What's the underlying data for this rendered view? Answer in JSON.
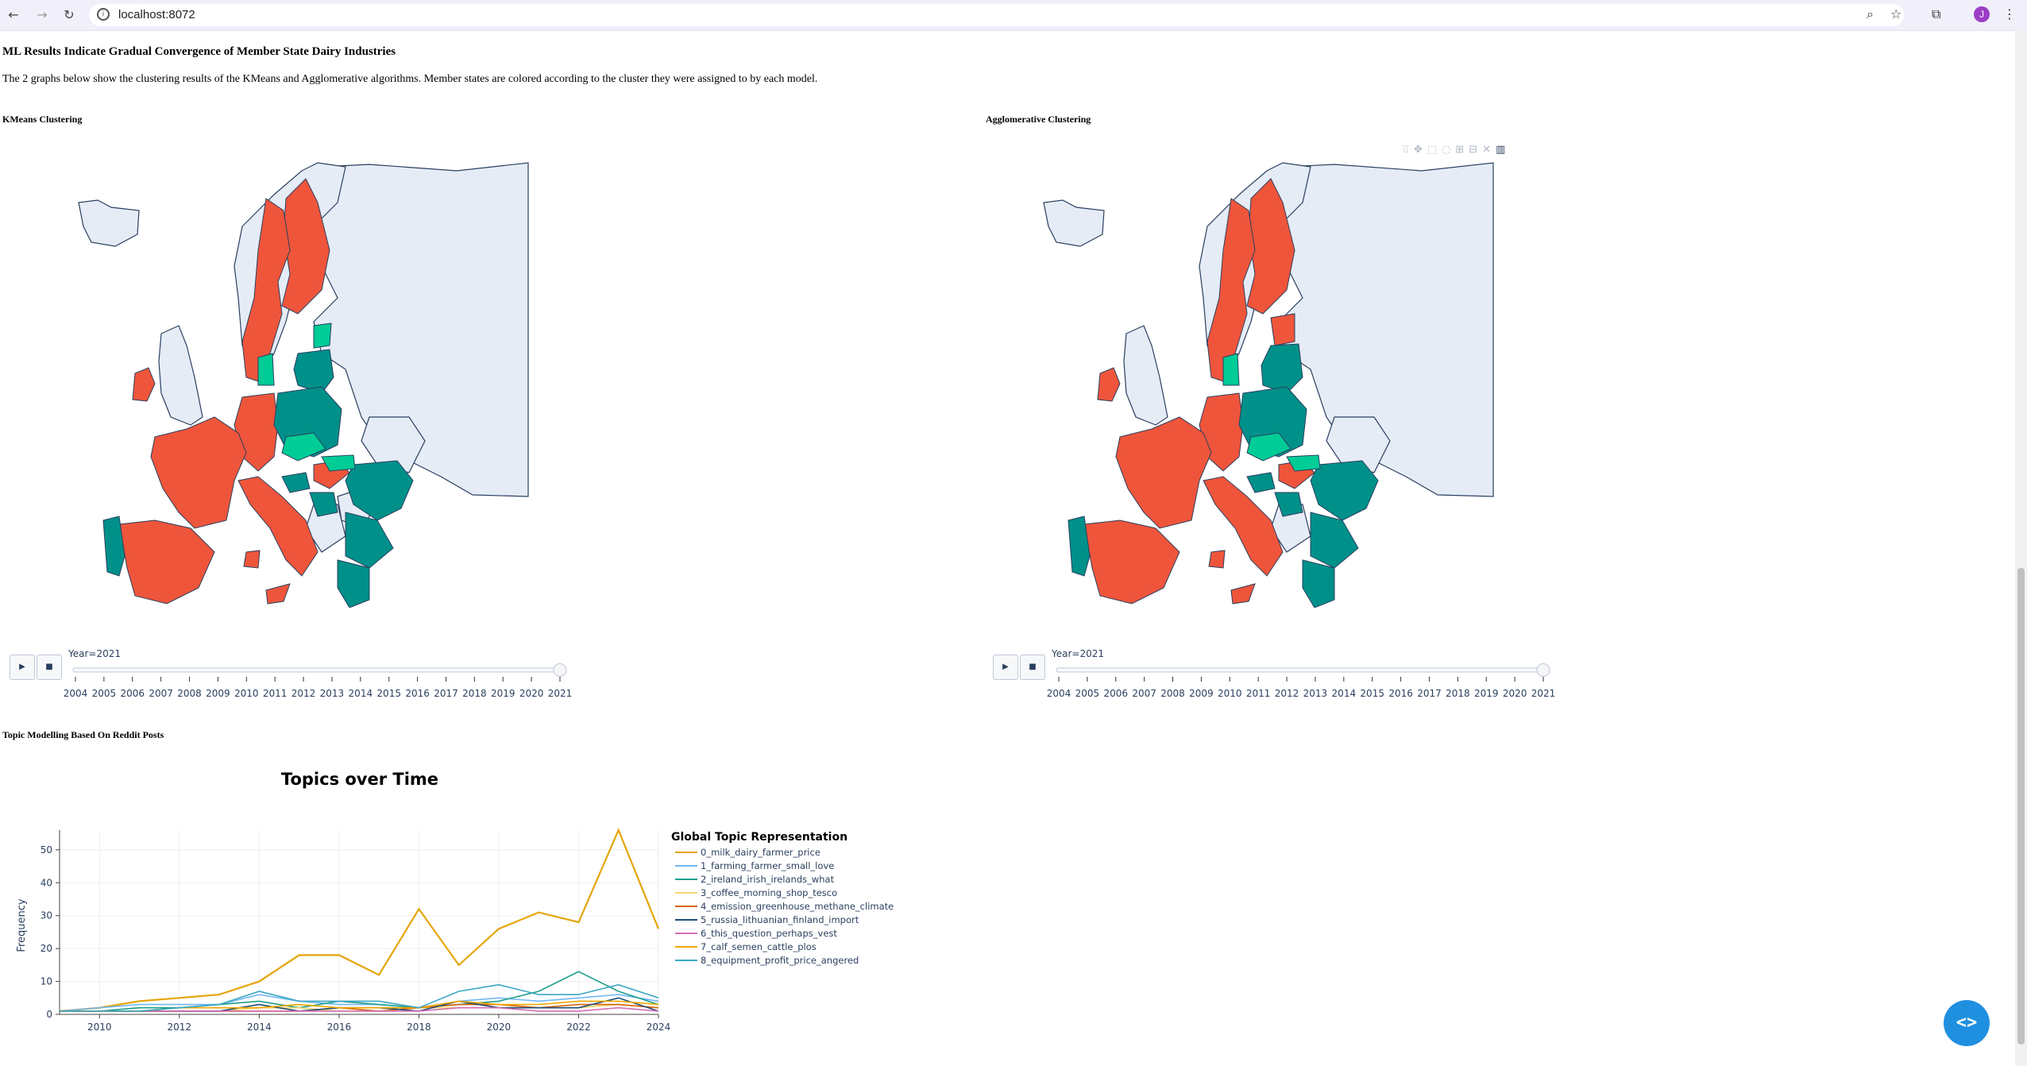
{
  "browser": {
    "url": "localhost:8072",
    "avatar_initial": "J"
  },
  "page": {
    "title": "ML Results Indicate Gradual Convergence of Member State Dairy Industries",
    "description": "The 2 graphs below show the clustering results of the KMeans and Agglomerative algorithms. Member states are colored according to the cluster they were assigned to by each model.",
    "kmeans_heading": "KMeans Clustering",
    "agglo_heading": "Agglomerative Clustering",
    "topic_heading": "Topic Modelling Based On Reddit Posts"
  },
  "slider": {
    "label": "Year=2021",
    "years": [
      "2004",
      "2005",
      "2006",
      "2007",
      "2008",
      "2009",
      "2010",
      "2011",
      "2012",
      "2013",
      "2014",
      "2015",
      "2016",
      "2017",
      "2018",
      "2019",
      "2020",
      "2021"
    ],
    "current": "2021"
  },
  "colors": {
    "cluster_red": "#ef553b",
    "cluster_teal": "#00908a",
    "cluster_green": "#00cc96",
    "land": "#e5ecf6"
  },
  "chart_data": {
    "type": "line",
    "title": "Topics over Time",
    "xlabel": "",
    "ylabel": "Frequency",
    "xlim": [
      2009,
      2024
    ],
    "ylim": [
      0,
      56
    ],
    "x_ticks": [
      "2010",
      "2012",
      "2014",
      "2016",
      "2018",
      "2020",
      "2022",
      "2024"
    ],
    "y_ticks": [
      "0",
      "10",
      "20",
      "30",
      "40",
      "50"
    ],
    "legend_title": "Global Topic Representation",
    "legend_position": "right",
    "x": [
      2009,
      2010,
      2011,
      2012,
      2013,
      2014,
      2015,
      2016,
      2017,
      2018,
      2019,
      2020,
      2021,
      2022,
      2023,
      2024
    ],
    "series": [
      {
        "name": "0_milk_dairy_farmer_price",
        "color": "#e5a50a",
        "values": [
          1,
          2,
          4,
          5,
          6,
          10,
          18,
          18,
          12,
          32,
          15,
          26,
          31,
          28,
          56,
          26
        ]
      },
      {
        "name": "1_farming_farmer_small_love",
        "color": "#72b7f2",
        "values": [
          1,
          2,
          3,
          3,
          3,
          6,
          4,
          3,
          3,
          2,
          4,
          5,
          4,
          5,
          6,
          4
        ]
      },
      {
        "name": "2_ireland_irish_irelands_what",
        "color": "#1c9f8c",
        "values": [
          1,
          1,
          2,
          2,
          3,
          4,
          2,
          4,
          3,
          2,
          3,
          4,
          7,
          13,
          7,
          3
        ]
      },
      {
        "name": "3_coffee_morning_shop_tesco",
        "color": "#f5d76e",
        "values": [
          1,
          1,
          1,
          1,
          1,
          2,
          2,
          1,
          1,
          2,
          2,
          2,
          2,
          2,
          3,
          2
        ]
      },
      {
        "name": "4_emission_greenhouse_methane_climate",
        "color": "#d9640a",
        "values": [
          1,
          1,
          1,
          1,
          1,
          1,
          1,
          2,
          1,
          2,
          3,
          3,
          2,
          3,
          3,
          2
        ]
      },
      {
        "name": "5_russia_lithuanian_finland_import",
        "color": "#1f4e79",
        "values": [
          1,
          1,
          1,
          1,
          1,
          3,
          1,
          2,
          2,
          1,
          4,
          2,
          2,
          2,
          5,
          1
        ]
      },
      {
        "name": "6_this_question_perhaps_vest",
        "color": "#d46fb5",
        "values": [
          1,
          1,
          1,
          1,
          1,
          1,
          1,
          1,
          1,
          1,
          2,
          2,
          1,
          1,
          2,
          1
        ]
      },
      {
        "name": "7_calf_semen_cattle_plos",
        "color": "#f0a800",
        "values": [
          1,
          1,
          1,
          2,
          2,
          2,
          3,
          2,
          2,
          2,
          4,
          3,
          3,
          4,
          4,
          3
        ]
      },
      {
        "name": "8_equipment_profit_price_angered",
        "color": "#3aa6c4",
        "values": [
          1,
          1,
          1,
          2,
          3,
          7,
          4,
          4,
          4,
          2,
          7,
          9,
          6,
          6,
          9,
          5
        ]
      }
    ]
  }
}
